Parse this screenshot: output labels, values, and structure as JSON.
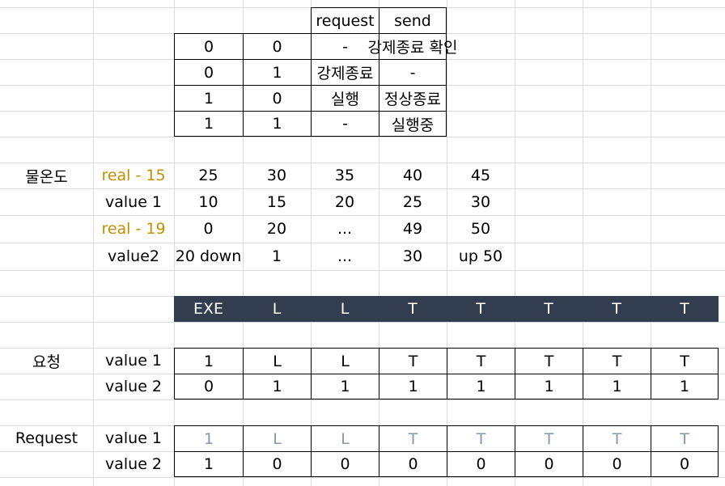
{
  "colors": {
    "gold": "#c09000",
    "dark_header": "#323e4f",
    "faded": "#8497b0",
    "grid": "#dadada"
  },
  "top_table": {
    "header": [
      "",
      "",
      "request",
      "send"
    ],
    "rows": [
      [
        "0",
        "0",
        "-",
        "강제종료 확인"
      ],
      [
        "0",
        "1",
        "강제종료",
        "-"
      ],
      [
        "1",
        "0",
        "실행",
        "정상종료"
      ],
      [
        "1",
        "1",
        "-",
        "실행중"
      ]
    ]
  },
  "water_temp": {
    "label": "물온도",
    "rows": [
      {
        "name": "real - 15",
        "accent": true,
        "values": [
          "25",
          "30",
          "35",
          "40",
          "45"
        ]
      },
      {
        "name": "value 1",
        "accent": false,
        "values": [
          "10",
          "15",
          "20",
          "25",
          "30"
        ]
      },
      {
        "name": "real - 19",
        "accent": true,
        "values": [
          "0",
          "20",
          "...",
          "49",
          "50"
        ]
      },
      {
        "name": "value2",
        "accent": false,
        "values": [
          "20 down",
          "1",
          "...",
          "30",
          "up 50"
        ]
      }
    ]
  },
  "exe_header": [
    "EXE",
    "L",
    "L",
    "T",
    "T",
    "T",
    "T",
    "T"
  ],
  "yocheong": {
    "label": "요청",
    "rows": [
      {
        "name": "value 1",
        "values": [
          "1",
          "L",
          "L",
          "T",
          "T",
          "T",
          "T",
          "T"
        ]
      },
      {
        "name": "value 2",
        "values": [
          "0",
          "1",
          "1",
          "1",
          "1",
          "1",
          "1",
          "1"
        ]
      }
    ]
  },
  "request": {
    "label": "Request",
    "rows": [
      {
        "name": "value 1",
        "faded": true,
        "values": [
          "1",
          "L",
          "L",
          "T",
          "T",
          "T",
          "T",
          "T"
        ]
      },
      {
        "name": "value 2",
        "faded": false,
        "values": [
          "1",
          "0",
          "0",
          "0",
          "0",
          "0",
          "0",
          "0"
        ]
      }
    ]
  }
}
